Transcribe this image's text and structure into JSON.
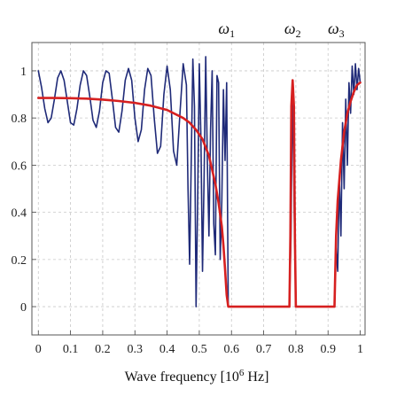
{
  "chart_data": {
    "type": "line",
    "title": "",
    "xlabel_text": "Wave frequency [10",
    "xlabel_exp": "6",
    "xlabel_unit": " Hz]",
    "ylabel": "",
    "xlim": [
      -0.02,
      1.015
    ],
    "ylim": [
      -0.12,
      1.12
    ],
    "xticks": [
      {
        "value": 0,
        "label": "0"
      },
      {
        "value": 0.1,
        "label": "0.1"
      },
      {
        "value": 0.2,
        "label": "0.2"
      },
      {
        "value": 0.3,
        "label": "0.3"
      },
      {
        "value": 0.4,
        "label": "0.4"
      },
      {
        "value": 0.5,
        "label": "0.5"
      },
      {
        "value": 0.6,
        "label": "0.6"
      },
      {
        "value": 0.7,
        "label": "0.7"
      },
      {
        "value": 0.8,
        "label": "0.8"
      },
      {
        "value": 0.9,
        "label": "0.9"
      },
      {
        "value": 1.0,
        "label": "1"
      }
    ],
    "yticks": [
      {
        "value": 0,
        "label": "0"
      },
      {
        "value": 0.2,
        "label": "0.2"
      },
      {
        "value": 0.4,
        "label": "0.4"
      },
      {
        "value": 0.6,
        "label": "0.6"
      },
      {
        "value": 0.8,
        "label": "0.8"
      },
      {
        "value": 1.0,
        "label": "1"
      }
    ],
    "grid": true,
    "annotations": [
      {
        "base": "ω",
        "sub": "1",
        "x": 0.585
      },
      {
        "base": "ω",
        "sub": "2",
        "x": 0.79
      },
      {
        "base": "ω",
        "sub": "3",
        "x": 0.925
      }
    ],
    "series": [
      {
        "color": "#1f2a78",
        "x": [
          0,
          0.01,
          0.02,
          0.03,
          0.04,
          0.05,
          0.06,
          0.07,
          0.08,
          0.09,
          0.1,
          0.11,
          0.12,
          0.13,
          0.14,
          0.15,
          0.16,
          0.17,
          0.18,
          0.19,
          0.2,
          0.21,
          0.22,
          0.23,
          0.24,
          0.25,
          0.26,
          0.27,
          0.28,
          0.29,
          0.3,
          0.31,
          0.32,
          0.33,
          0.34,
          0.35,
          0.36,
          0.37,
          0.38,
          0.39,
          0.4,
          0.41,
          0.42,
          0.43,
          0.44,
          0.45,
          0.46,
          0.465,
          0.47,
          0.475,
          0.48,
          0.485,
          0.49,
          0.495,
          0.5,
          0.505,
          0.51,
          0.515,
          0.52,
          0.525,
          0.53,
          0.535,
          0.54,
          0.545,
          0.55,
          0.555,
          0.56,
          0.565,
          0.57,
          0.575,
          0.58,
          0.585,
          0.59,
          0.6,
          0.65,
          0.7,
          0.75,
          0.78,
          0.785,
          0.79,
          0.795,
          0.8,
          0.81,
          0.85,
          0.9,
          0.92,
          0.925,
          0.93,
          0.935,
          0.94,
          0.945,
          0.95,
          0.955,
          0.96,
          0.965,
          0.97,
          0.975,
          0.98,
          0.985,
          0.99,
          0.995,
          1.0
        ],
        "y": [
          1.0,
          0.93,
          0.84,
          0.78,
          0.8,
          0.88,
          0.97,
          1.0,
          0.96,
          0.87,
          0.78,
          0.77,
          0.84,
          0.94,
          1.0,
          0.98,
          0.89,
          0.79,
          0.76,
          0.83,
          0.95,
          1.0,
          0.99,
          0.88,
          0.76,
          0.74,
          0.83,
          0.96,
          1.01,
          0.96,
          0.8,
          0.7,
          0.75,
          0.92,
          1.01,
          0.98,
          0.8,
          0.65,
          0.68,
          0.9,
          1.02,
          0.92,
          0.66,
          0.6,
          0.82,
          1.03,
          0.94,
          0.5,
          0.18,
          0.62,
          1.05,
          0.85,
          0.0,
          0.45,
          1.03,
          0.72,
          0.15,
          0.55,
          1.06,
          0.62,
          0.3,
          0.75,
          1.0,
          0.35,
          0.22,
          0.98,
          0.95,
          0.2,
          0.45,
          0.92,
          0.62,
          0.95,
          0.0,
          0.0,
          0.0,
          0.0,
          0.0,
          0.0,
          0.3,
          0.96,
          0.4,
          0.0,
          0.0,
          0.0,
          0.0,
          0.0,
          0.25,
          0.15,
          0.55,
          0.3,
          0.78,
          0.5,
          0.88,
          0.6,
          0.95,
          0.82,
          1.02,
          0.9,
          1.03,
          0.92,
          1.01,
          0.95
        ]
      },
      {
        "color": "#d62020",
        "x": [
          0,
          0.05,
          0.1,
          0.15,
          0.2,
          0.25,
          0.3,
          0.35,
          0.4,
          0.45,
          0.47,
          0.49,
          0.51,
          0.53,
          0.55,
          0.56,
          0.57,
          0.575,
          0.58,
          0.585,
          0.59,
          0.6,
          0.7,
          0.78,
          0.783,
          0.786,
          0.79,
          0.794,
          0.797,
          0.8,
          0.85,
          0.92,
          0.925,
          0.93,
          0.94,
          0.95,
          0.96,
          0.97,
          0.98,
          0.99,
          1.0
        ],
        "y": [
          0.885,
          0.885,
          0.884,
          0.882,
          0.878,
          0.872,
          0.864,
          0.852,
          0.834,
          0.8,
          0.78,
          0.75,
          0.71,
          0.64,
          0.52,
          0.44,
          0.34,
          0.26,
          0.16,
          0.05,
          0.0,
          0.0,
          0.0,
          0.0,
          0.3,
          0.85,
          0.96,
          0.85,
          0.3,
          0.0,
          0.0,
          0.0,
          0.3,
          0.45,
          0.62,
          0.74,
          0.82,
          0.87,
          0.91,
          0.94,
          0.95
        ]
      }
    ]
  }
}
